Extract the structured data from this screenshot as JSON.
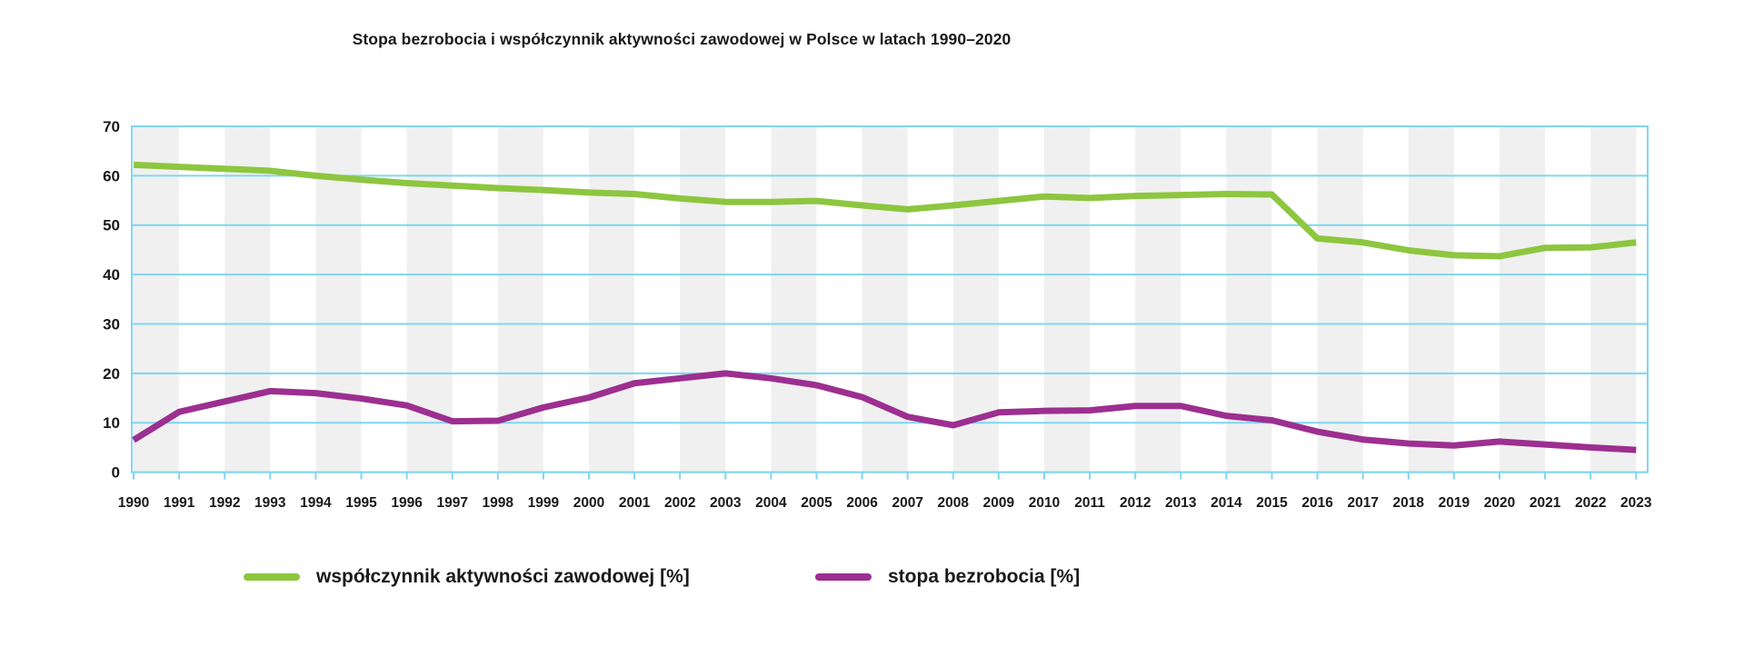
{
  "title": "Stopa bezrobocia i współczynnik aktywności zawodowej w Polsce w latach 1990–2020",
  "legend": {
    "items": [
      {
        "label": "współczynnik aktywności zawodowej [%]",
        "color": "#8dc63f"
      },
      {
        "label": "stopa bezrobocia [%]",
        "color": "#9c2f90"
      }
    ]
  },
  "chart_data": {
    "type": "line",
    "title": "Stopa bezrobocia i współczynnik aktywności zawodowej w Polsce w latach 1990–2020",
    "x": [
      1990,
      1991,
      1992,
      1993,
      1994,
      1995,
      1996,
      1997,
      1998,
      1999,
      2000,
      2001,
      2002,
      2003,
      2004,
      2005,
      2006,
      2007,
      2008,
      2009,
      2010,
      2011,
      2012,
      2013,
      2014,
      2015,
      2016,
      2017,
      2018,
      2019,
      2020,
      2021,
      2022,
      2023
    ],
    "series": [
      {
        "name": "współczynnik aktywności zawodowej [%]",
        "color": "#8dc63f",
        "values": [
          62.2,
          61.8,
          61.4,
          61.0,
          60.0,
          59.2,
          58.5,
          58.0,
          57.5,
          57.1,
          56.6,
          56.3,
          55.4,
          54.7,
          54.7,
          54.9,
          54.0,
          53.2,
          54.0,
          54.9,
          55.8,
          55.5,
          55.9,
          56.1,
          56.3,
          56.2,
          47.3,
          46.5,
          44.9,
          43.9,
          43.7,
          45.4,
          45.5,
          46.5
        ]
      },
      {
        "name": "stopa bezrobocia [%]",
        "color": "#9c2f90",
        "values": [
          6.5,
          12.2,
          14.3,
          16.4,
          16.0,
          14.9,
          13.5,
          10.3,
          10.4,
          13.1,
          15.1,
          18.0,
          19.0,
          20.0,
          19.0,
          17.6,
          15.2,
          11.2,
          9.5,
          12.1,
          12.4,
          12.5,
          13.4,
          13.4,
          11.4,
          10.5,
          8.2,
          6.6,
          5.8,
          5.4,
          6.2,
          5.6,
          5.0,
          4.5
        ]
      }
    ],
    "xlabel": "",
    "ylabel": "",
    "ylim": [
      0,
      70
    ],
    "yticks": [
      0,
      10,
      20,
      30,
      40,
      50,
      60,
      70
    ],
    "grid": "horizontal gridlines on, alternating vertical year bands",
    "legend_position": "bottom",
    "style": {
      "grid_color": "#7fd6f0",
      "band_color": "#f0f0f0",
      "axis_text_color": "#1a1a1a",
      "line_width": 7
    }
  }
}
